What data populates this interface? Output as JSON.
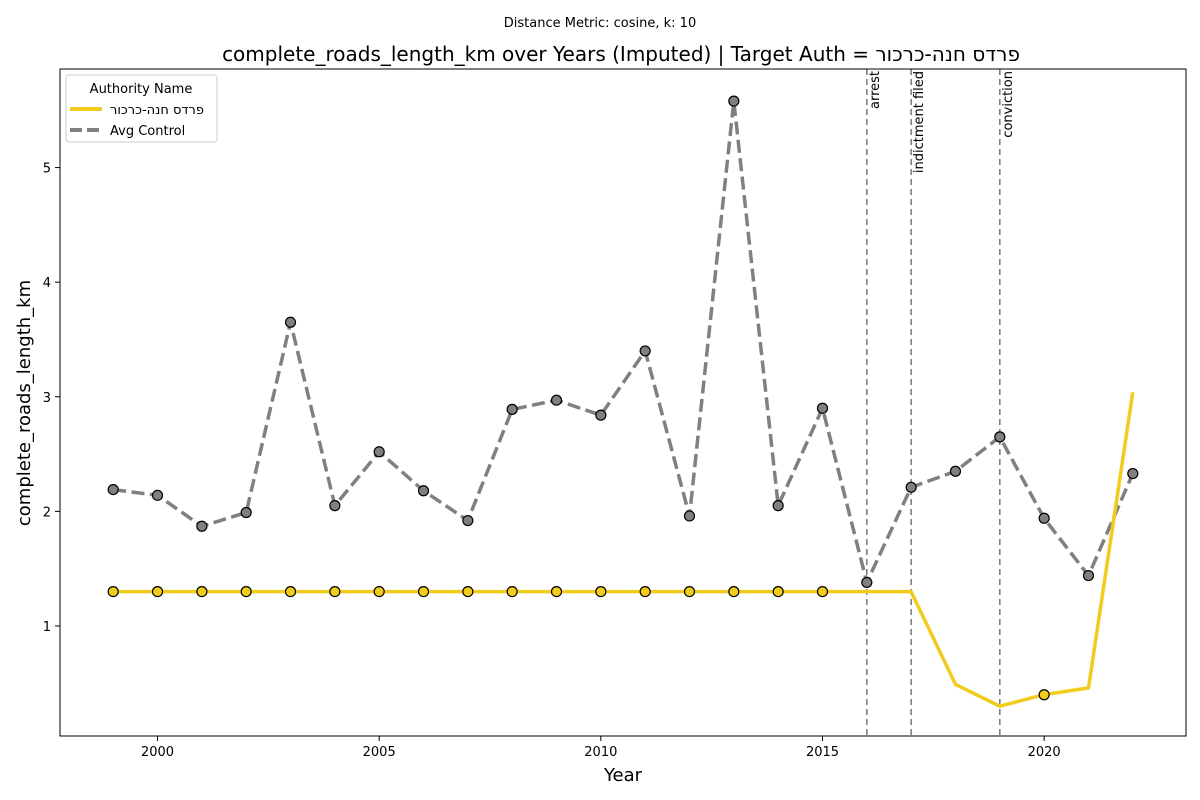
{
  "chart_data": {
    "type": "line",
    "suptitle": "Distance Metric: cosine, k: 10",
    "title": "complete_roads_length_km over Years (Imputed) | Target Auth = פרדס חנה-כרכור",
    "xlabel": "Year",
    "ylabel": "complete_roads_length_km",
    "xlim": [
      1997.8,
      2023.2
    ],
    "ylim": [
      0.04,
      5.86
    ],
    "xticks": [
      2000,
      2005,
      2010,
      2015,
      2020
    ],
    "yticks": [
      1,
      2,
      3,
      4,
      5
    ],
    "grid": false,
    "legend": {
      "title": "Authority Name",
      "position": "top-left"
    },
    "series": [
      {
        "name": "פרדס חנה-כרכור",
        "color": "#f2cc1d",
        "linestyle": "solid",
        "x": [
          1999,
          2000,
          2001,
          2002,
          2003,
          2004,
          2005,
          2006,
          2007,
          2008,
          2009,
          2010,
          2011,
          2012,
          2013,
          2014,
          2015,
          2016,
          2017,
          2018,
          2019,
          2020,
          2021,
          2022
        ],
        "y": [
          1.3,
          1.3,
          1.3,
          1.3,
          1.3,
          1.3,
          1.3,
          1.3,
          1.3,
          1.3,
          1.3,
          1.3,
          1.3,
          1.3,
          1.3,
          1.3,
          1.3,
          1.3,
          1.3,
          0.49,
          0.3,
          0.4,
          0.46,
          3.04
        ],
        "markers": [
          1999,
          2000,
          2001,
          2002,
          2003,
          2004,
          2005,
          2006,
          2007,
          2008,
          2009,
          2010,
          2011,
          2012,
          2013,
          2014,
          2015,
          2020
        ]
      },
      {
        "name": "Avg Control",
        "color": "#808080",
        "linestyle": "dashed",
        "x": [
          1999,
          2000,
          2001,
          2002,
          2003,
          2004,
          2005,
          2006,
          2007,
          2008,
          2009,
          2010,
          2011,
          2012,
          2013,
          2014,
          2015,
          2016,
          2017,
          2018,
          2019,
          2020,
          2021,
          2022
        ],
        "y": [
          2.19,
          2.14,
          1.87,
          1.99,
          3.65,
          2.05,
          2.52,
          2.18,
          1.92,
          2.89,
          2.97,
          2.84,
          3.4,
          1.96,
          5.58,
          2.05,
          2.9,
          1.38,
          2.21,
          2.35,
          2.65,
          1.94,
          1.44,
          2.33
        ]
      }
    ],
    "events": [
      {
        "label": "arrest",
        "x": 2016
      },
      {
        "label": "indictment filed",
        "x": 2017
      },
      {
        "label": "conviction",
        "x": 2019
      }
    ]
  }
}
